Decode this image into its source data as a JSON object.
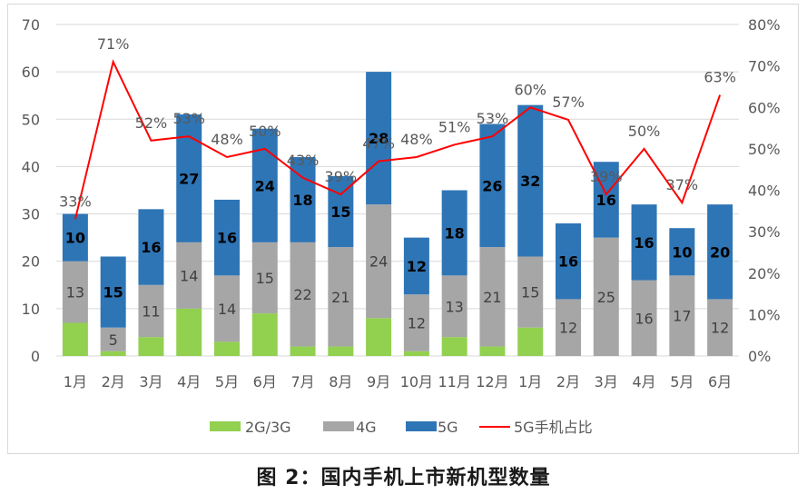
{
  "caption": "图 2：国内手机上市新机型数量",
  "chart_data": {
    "type": "bar",
    "stacked": true,
    "categories": [
      "1月",
      "2月",
      "3月",
      "4月",
      "5月",
      "6月",
      "7月",
      "8月",
      "9月",
      "10月",
      "11月",
      "12月",
      "1月",
      "2月",
      "3月",
      "4月",
      "5月",
      "6月"
    ],
    "series": [
      {
        "name": "2G/3G",
        "color": "#92d050",
        "values": [
          7,
          1,
          4,
          10,
          3,
          9,
          2,
          2,
          8,
          1,
          4,
          2,
          6,
          0,
          0,
          0,
          0,
          0
        ]
      },
      {
        "name": "4G",
        "color": "#a6a6a6",
        "values": [
          13,
          5,
          11,
          14,
          14,
          15,
          22,
          21,
          24,
          12,
          13,
          21,
          15,
          12,
          25,
          16,
          17,
          12
        ]
      },
      {
        "name": "5G",
        "color": "#2e75b6",
        "values": [
          10,
          15,
          16,
          27,
          16,
          24,
          18,
          15,
          28,
          12,
          18,
          26,
          32,
          16,
          16,
          16,
          10,
          20
        ]
      },
      {
        "name": "5G手机占比",
        "color": "#ff0000",
        "type": "line",
        "axis": "right",
        "values": [
          33,
          71,
          52,
          53,
          48,
          50,
          43,
          39,
          47,
          48,
          51,
          53,
          60,
          57,
          39,
          50,
          37,
          63
        ]
      }
    ],
    "line_labels": [
      "33%",
      "71%",
      "52%",
      "53%",
      "48%",
      "50%",
      "43%",
      "39%",
      "47%",
      "48%",
      "51%",
      "53%",
      "60%",
      "57%",
      "39%",
      "50%",
      "37%",
      "63%"
    ],
    "fourg_labels": [
      "13",
      "5",
      "11",
      "14",
      "14",
      "15",
      "22",
      "21",
      "24",
      "12",
      "13",
      "21",
      "15",
      "12",
      "25",
      "16",
      "17",
      "12"
    ],
    "fiveg_labels": [
      "10",
      "15",
      "16",
      "27",
      "16",
      "24",
      "18",
      "15",
      "28",
      "12",
      "18",
      "26",
      "32",
      "16",
      "16",
      "16",
      "10",
      "20"
    ],
    "y_left": {
      "min": 0,
      "max": 70,
      "ticks": [
        "0",
        "10",
        "20",
        "30",
        "40",
        "50",
        "60",
        "70"
      ]
    },
    "y_right": {
      "min": 0,
      "max": 80,
      "ticks": [
        "0%",
        "10%",
        "20%",
        "30%",
        "40%",
        "50%",
        "60%",
        "70%",
        "80%"
      ]
    },
    "legend": [
      "2G/3G",
      "4G",
      "5G",
      "5G手机占比"
    ],
    "legend_position": "bottom",
    "grid": true
  }
}
